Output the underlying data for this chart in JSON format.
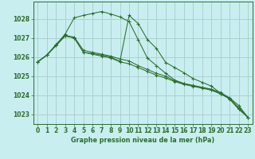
{
  "bg_color": "#c8eef0",
  "grid_color": "#aacccc",
  "line_color": "#2d6e2d",
  "title": "Graphe pression niveau de la mer (hPa)",
  "ylim": [
    1022.5,
    1028.9
  ],
  "yticks": [
    1023,
    1024,
    1025,
    1026,
    1027,
    1028
  ],
  "xlim": [
    -0.5,
    23.5
  ],
  "xticks": [
    0,
    1,
    2,
    3,
    4,
    5,
    6,
    7,
    8,
    9,
    10,
    11,
    12,
    13,
    14,
    15,
    16,
    17,
    18,
    19,
    20,
    21,
    22,
    23
  ],
  "series": [
    [
      1025.75,
      1026.1,
      1026.65,
      1027.1,
      1027.05,
      1026.35,
      1026.25,
      1026.15,
      1026.05,
      1025.9,
      1025.8,
      1025.55,
      1025.35,
      1025.15,
      1025.0,
      1024.75,
      1024.6,
      1024.5,
      1024.4,
      1024.3,
      1024.1,
      1023.85,
      1023.35,
      1022.85
    ],
    [
      1025.75,
      1026.1,
      1026.65,
      1027.2,
      1028.05,
      1028.18,
      1028.28,
      1028.38,
      1028.25,
      1028.1,
      1027.85,
      1026.9,
      1025.95,
      1025.55,
      1025.15,
      1024.8,
      1024.62,
      1024.52,
      1024.42,
      1024.32,
      1024.15,
      1023.87,
      1023.47,
      1022.85
    ],
    [
      1025.75,
      1026.1,
      1026.6,
      1027.1,
      1027.0,
      1026.25,
      1026.18,
      1026.1,
      1026.0,
      1025.78,
      1028.18,
      1027.75,
      1026.92,
      1026.45,
      1025.72,
      1025.45,
      1025.18,
      1024.88,
      1024.68,
      1024.48,
      1024.12,
      1023.8,
      1023.28,
      1022.85
    ],
    [
      1025.75,
      1026.1,
      1026.6,
      1027.15,
      1027.0,
      1026.25,
      1026.15,
      1026.05,
      1025.95,
      1025.75,
      1025.65,
      1025.45,
      1025.25,
      1025.05,
      1024.9,
      1024.72,
      1024.57,
      1024.47,
      1024.37,
      1024.27,
      1024.07,
      1023.82,
      1023.28,
      1022.85
    ]
  ]
}
